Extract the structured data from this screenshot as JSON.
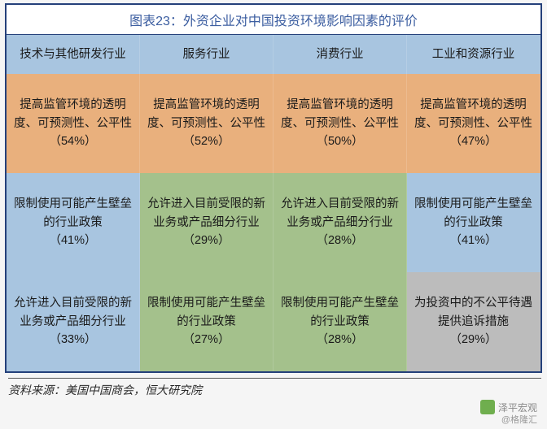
{
  "title": "图表23：外资企业对中国投资环境影响因素的评价",
  "colors": {
    "blue": "#a8c5e0",
    "orange": "#e9b07d",
    "green": "#a4c18c",
    "gray": "#bcbcbc",
    "header_bg": "#a8c5e0",
    "border": "#24407a"
  },
  "headers": [
    "技术与其他研发行业",
    "服务行业",
    "消费行业",
    "工业和资源行业"
  ],
  "rows": [
    [
      {
        "text": "提高监管环境的透明度、可预测性、公平性",
        "pct": "（54%）",
        "color": "orange"
      },
      {
        "text": "提高监管环境的透明度、可预测性、公平性",
        "pct": "（52%）",
        "color": "orange"
      },
      {
        "text": "提高监管环境的透明度、可预测性、公平性",
        "pct": "（50%）",
        "color": "orange"
      },
      {
        "text": "提高监管环境的透明度、可预测性、公平性",
        "pct": "（47%）",
        "color": "orange"
      }
    ],
    [
      {
        "text": "限制使用可能产生壁垒的行业政策",
        "pct": "（41%）",
        "color": "blue"
      },
      {
        "text": "允许进入目前受限的新业务或产品细分行业",
        "pct": "（29%）",
        "color": "green"
      },
      {
        "text": "允许进入目前受限的新业务或产品细分行业",
        "pct": "（28%）",
        "color": "green"
      },
      {
        "text": "限制使用可能产生壁垒的行业政策",
        "pct": "（41%）",
        "color": "blue"
      }
    ],
    [
      {
        "text": "允许进入目前受限的新业务或产品细分行业",
        "pct": "（33%）",
        "color": "blue"
      },
      {
        "text": "限制使用可能产生壁垒的行业政策",
        "pct": "（27%）",
        "color": "green"
      },
      {
        "text": "限制使用可能产生壁垒的行业政策",
        "pct": "（28%）",
        "color": "green"
      },
      {
        "text": "为投资中的不公平待遇提供追诉措施",
        "pct": "（29%）",
        "color": "gray"
      }
    ]
  ],
  "source": "资料来源：美国中国商会，恒大研究院",
  "watermark_main": "泽平宏观",
  "watermark_sub": "@格隆汇"
}
